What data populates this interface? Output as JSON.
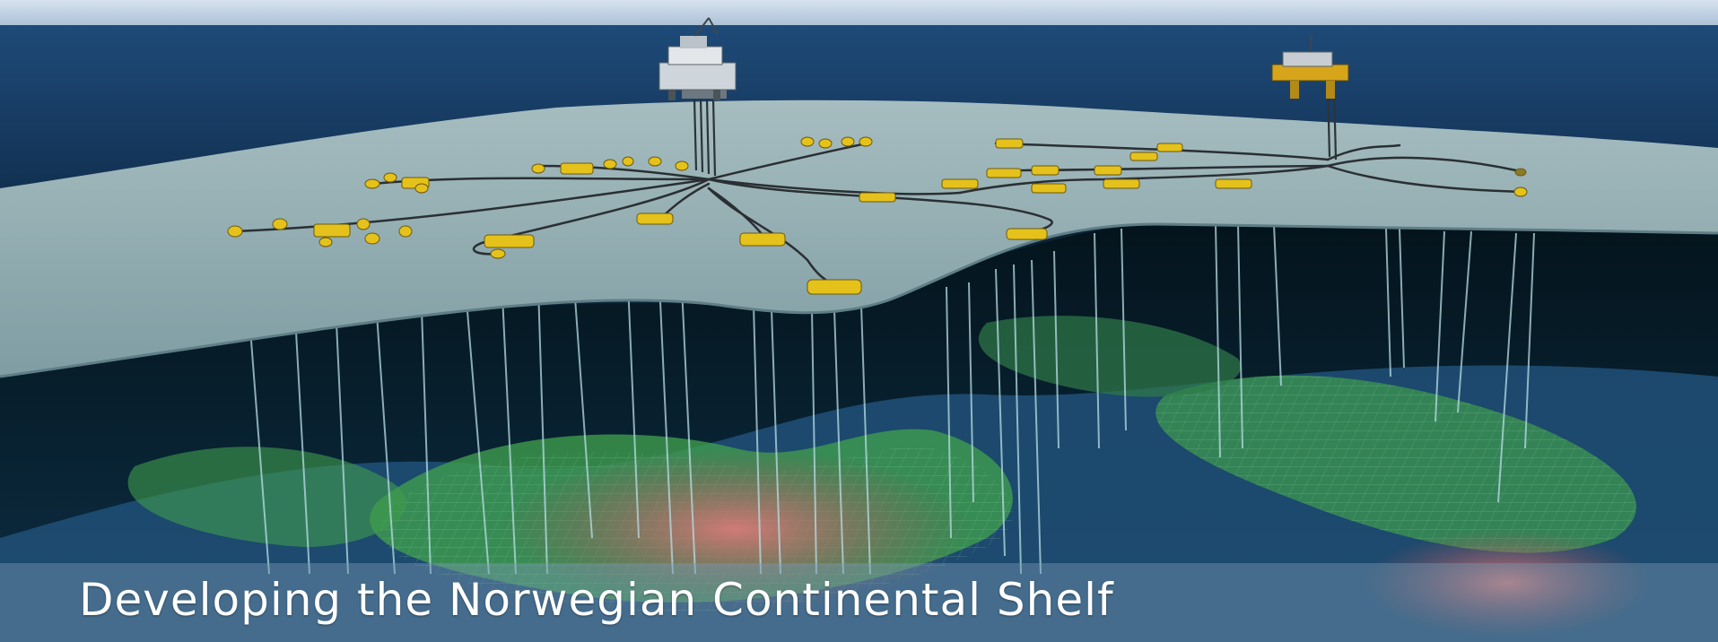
{
  "banner": {
    "caption": "Developing the Norwegian Continental Shelf",
    "image_subject": "subsea-field-cutaway",
    "colors": {
      "sky": "#b9cbe0",
      "sea_surface": "#1a3f66",
      "seabed": "#8fa9ae",
      "subsea_equipment": "#e5c21b",
      "reservoir_warm": "#c86a6a",
      "reservoir_green": "#3f9c4d",
      "reservoir_blue": "#2c5f86",
      "caption_text": "#ffffff"
    }
  }
}
